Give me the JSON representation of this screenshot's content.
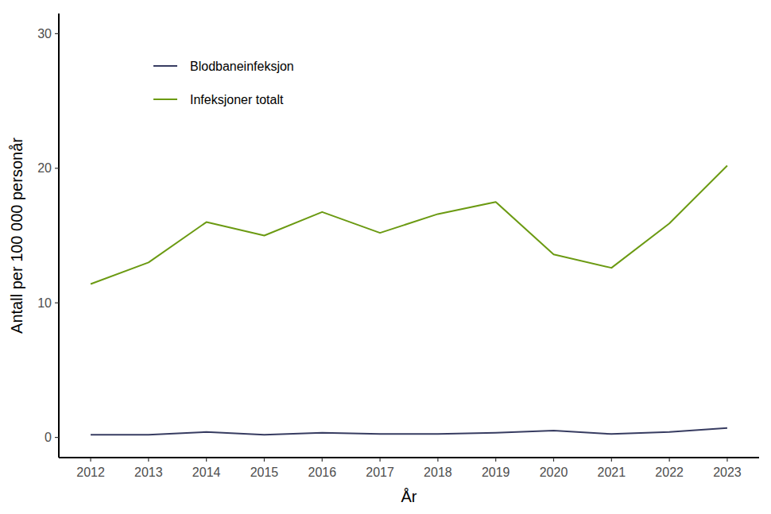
{
  "chart_data": {
    "type": "line",
    "x_label": "År",
    "y_label": "Antall per 100 000 personår",
    "x": [
      2012,
      2013,
      2014,
      2015,
      2016,
      2017,
      2018,
      2019,
      2020,
      2021,
      2022,
      2023
    ],
    "series": [
      {
        "name": "Blodbaneinfeksjon",
        "color": "#373c61",
        "values": [
          0.2,
          0.2,
          0.4,
          0.2,
          0.35,
          0.25,
          0.25,
          0.35,
          0.5,
          0.25,
          0.4,
          0.7
        ]
      },
      {
        "name": "Infeksjoner totalt",
        "color": "#6b9a12",
        "values": [
          11.4,
          13.0,
          16.0,
          15.0,
          16.75,
          15.2,
          16.6,
          17.5,
          13.6,
          12.6,
          15.9,
          20.2
        ]
      }
    ],
    "xlim": [
      2011.45,
      2023.55
    ],
    "xticks": [
      2012,
      2013,
      2014,
      2015,
      2016,
      2017,
      2018,
      2019,
      2020,
      2021,
      2022,
      2023
    ],
    "ylim": [
      -1.5,
      31.5
    ],
    "yticks": [
      0,
      10,
      20,
      30
    ],
    "grid": false,
    "legend": "top-left"
  }
}
